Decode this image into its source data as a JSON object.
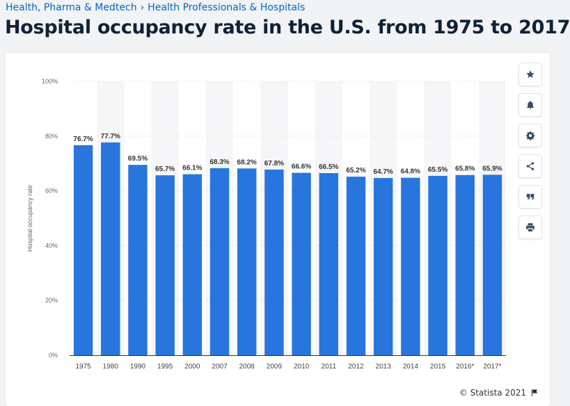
{
  "breadcrumb": {
    "items": [
      "Health, Pharma & Medtech",
      "Health Professionals & Hospitals"
    ],
    "separator": "›"
  },
  "page_title": "Hospital occupancy rate in the U.S. from 1975 to 2017",
  "tools": [
    {
      "name": "favorite",
      "icon": "star-icon"
    },
    {
      "name": "notification",
      "icon": "bell-icon"
    },
    {
      "name": "settings",
      "icon": "gear-icon"
    },
    {
      "name": "share",
      "icon": "share-icon"
    },
    {
      "name": "cite",
      "icon": "quote-icon"
    },
    {
      "name": "print",
      "icon": "print-icon"
    }
  ],
  "footer": {
    "copyright": "© Statista 2021",
    "flag_icon": "flag-icon"
  },
  "colors": {
    "bar": "#2876dd",
    "band": "#f6f6f9",
    "accent": "#0066cc"
  },
  "chart_data": {
    "type": "bar",
    "categories": [
      "1975",
      "1980",
      "1990",
      "1995",
      "2000",
      "2007",
      "2008",
      "2009",
      "2010",
      "2011",
      "2012",
      "2013",
      "2014",
      "2015",
      "2016*",
      "2017*"
    ],
    "values": [
      76.7,
      77.7,
      69.5,
      65.7,
      66.1,
      68.3,
      68.2,
      67.8,
      66.6,
      66.5,
      65.2,
      64.7,
      64.8,
      65.5,
      65.8,
      65.9
    ],
    "value_labels": [
      "76.7%",
      "77.7%",
      "69.5%",
      "65.7%",
      "66.1%",
      "68.3%",
      "68.2%",
      "67.8%",
      "66.6%",
      "66.5%",
      "65.2%",
      "64.7%",
      "64.8%",
      "65.5%",
      "65.8%",
      "65.9%"
    ],
    "title": "",
    "xlabel": "",
    "ylabel": "Hospital occupancy rate",
    "ylim": [
      0,
      100
    ],
    "yticks": [
      0,
      20,
      40,
      60,
      80,
      100
    ],
    "ytick_labels": [
      "0%",
      "20%",
      "40%",
      "60%",
      "80%",
      "100%"
    ],
    "grid": true,
    "legend": "none"
  }
}
